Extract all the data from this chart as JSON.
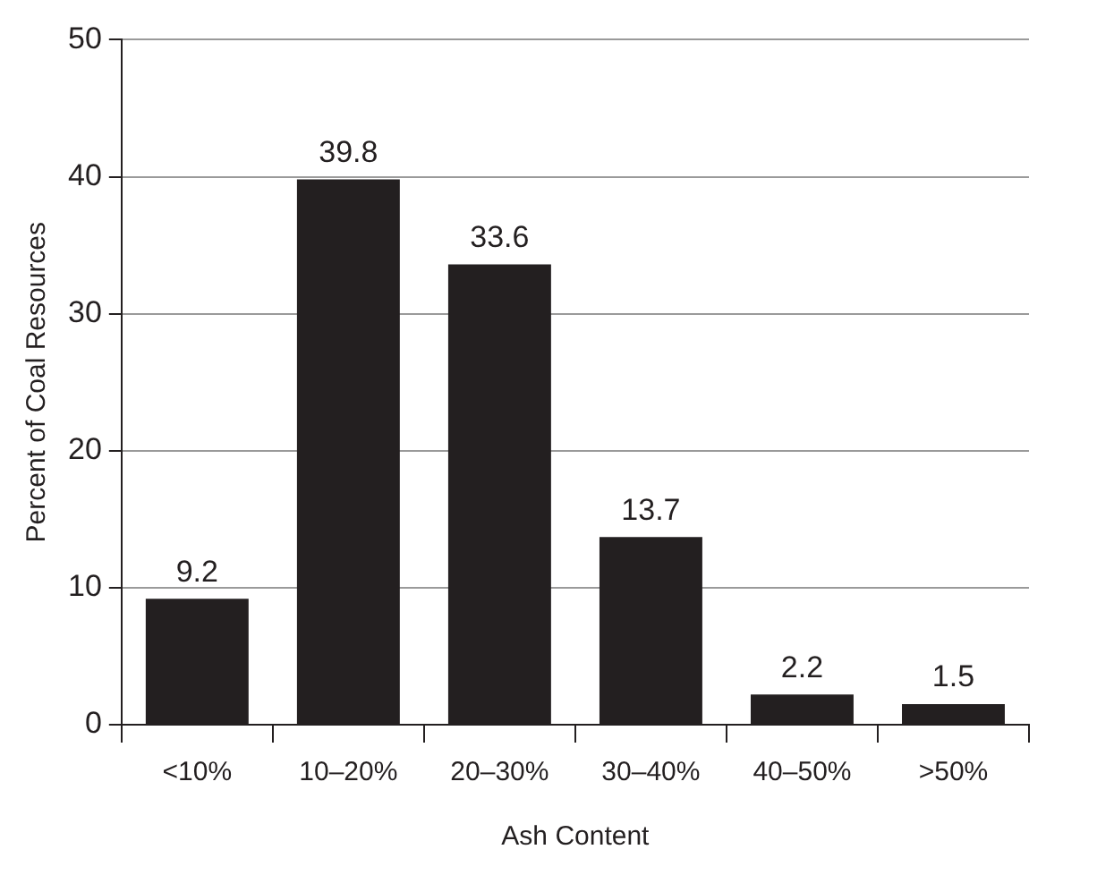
{
  "chart_data": {
    "type": "bar",
    "xlabel": "Ash Content",
    "ylabel": "Percent of Coal Resources",
    "categories": [
      "<10%",
      "10–20%",
      "20–30%",
      "30–40%",
      "40–50%",
      ">50%"
    ],
    "values": [
      9.2,
      39.8,
      33.6,
      13.7,
      2.2,
      1.5
    ],
    "color": "#231f20",
    "ylim": [
      0,
      50
    ],
    "yticks": [
      0,
      10,
      20,
      30,
      40,
      50
    ],
    "grid": "y",
    "legend": false,
    "data_labels": true
  }
}
